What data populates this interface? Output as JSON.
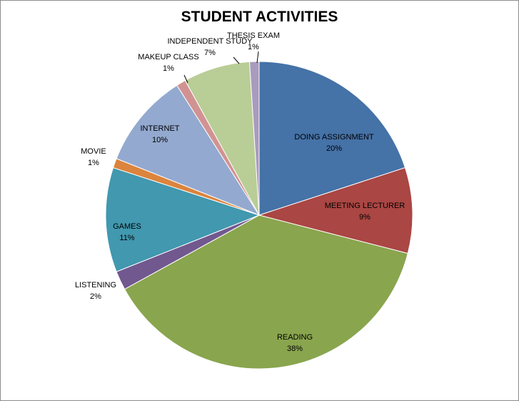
{
  "chart_data": {
    "type": "pie",
    "title": "STUDENT ACTIVITIES",
    "legend": "none",
    "slices": [
      {
        "label": "DOING ASSIGNMENT",
        "value": 20,
        "pct_label": "20%",
        "color": "#4572a7"
      },
      {
        "label": "MEETING LECTURER",
        "value": 9,
        "pct_label": "9%",
        "color": "#aa4643"
      },
      {
        "label": "READING",
        "value": 38,
        "pct_label": "38%",
        "color": "#89a54e"
      },
      {
        "label": "LISTENING",
        "value": 2,
        "pct_label": "2%",
        "color": "#71588f"
      },
      {
        "label": "GAMES",
        "value": 11,
        "pct_label": "11%",
        "color": "#4198af"
      },
      {
        "label": "MOVIE",
        "value": 1,
        "pct_label": "1%",
        "color": "#db843d"
      },
      {
        "label": "INTERNET",
        "value": 10,
        "pct_label": "10%",
        "color": "#93a9cf"
      },
      {
        "label": "MAKEUP CLASS",
        "value": 1,
        "pct_label": "1%",
        "color": "#d19392"
      },
      {
        "label": "INDEPENDENT STUDY",
        "value": 7,
        "pct_label": "7%",
        "color": "#b9cd96"
      },
      {
        "label": "THESIS EXAM",
        "value": 1,
        "pct_label": "1%",
        "color": "#a99bbd"
      }
    ]
  }
}
